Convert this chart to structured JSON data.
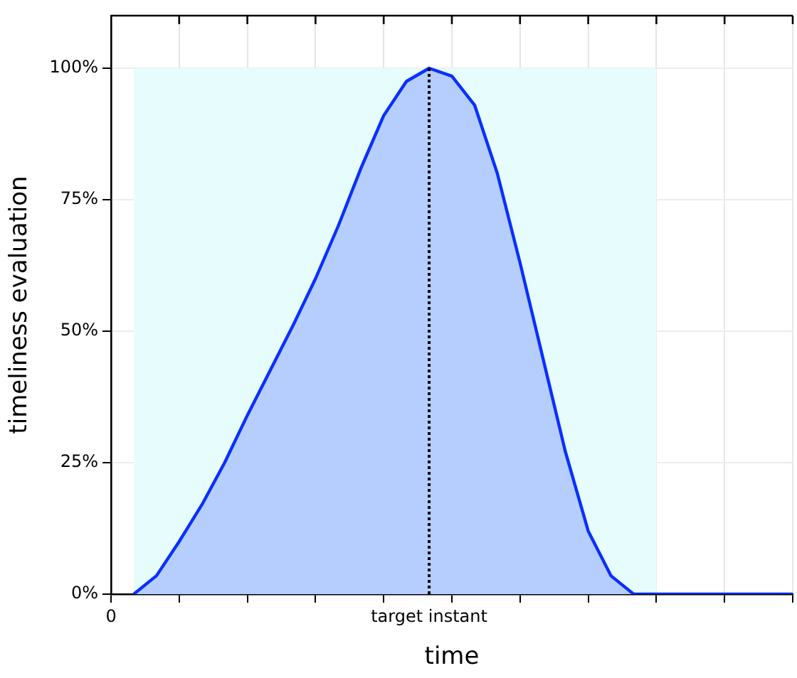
{
  "chart_data": {
    "type": "area",
    "xlabel": "time",
    "ylabel": "timeliness evaluation",
    "categories": [
      "0",
      null,
      null,
      null,
      null,
      null,
      null,
      null,
      null,
      null,
      null,
      null,
      null,
      null,
      "target instant",
      null,
      null,
      null,
      null,
      null,
      null,
      null,
      null,
      null,
      null,
      null,
      null,
      null,
      null,
      null,
      null
    ],
    "ylim": [
      0,
      110
    ],
    "yticks": [
      {
        "value": 0,
        "label": "0%"
      },
      {
        "value": 25,
        "label": "25%"
      },
      {
        "value": 50,
        "label": "50%"
      },
      {
        "value": 75,
        "label": "75%"
      },
      {
        "value": 100,
        "label": "100%"
      }
    ],
    "grid": true,
    "marker": "none",
    "line_style": "solid",
    "ref_lines": [
      {
        "axis": "x",
        "value": "target instant",
        "color": "#000000",
        "line_style": "dotted"
      }
    ],
    "series": [
      {
        "color": "#e6fcfd",
        "values": [
          null,
          100,
          100,
          100,
          100,
          100,
          100,
          100,
          100,
          100,
          100,
          100,
          100,
          100,
          100,
          100,
          100,
          100,
          100,
          100,
          100,
          100,
          100,
          100,
          100,
          null,
          null,
          null,
          null,
          null,
          null
        ]
      },
      {
        "color": "#0a2fff",
        "values": [
          null,
          0,
          3.5,
          10,
          17,
          25,
          34,
          42.5,
          51,
          60,
          70,
          81,
          91,
          97.5,
          100,
          98.5,
          93,
          80,
          63,
          45,
          27,
          12,
          3.5,
          0,
          0,
          0,
          0,
          0,
          0,
          0,
          0
        ]
      }
    ]
  }
}
